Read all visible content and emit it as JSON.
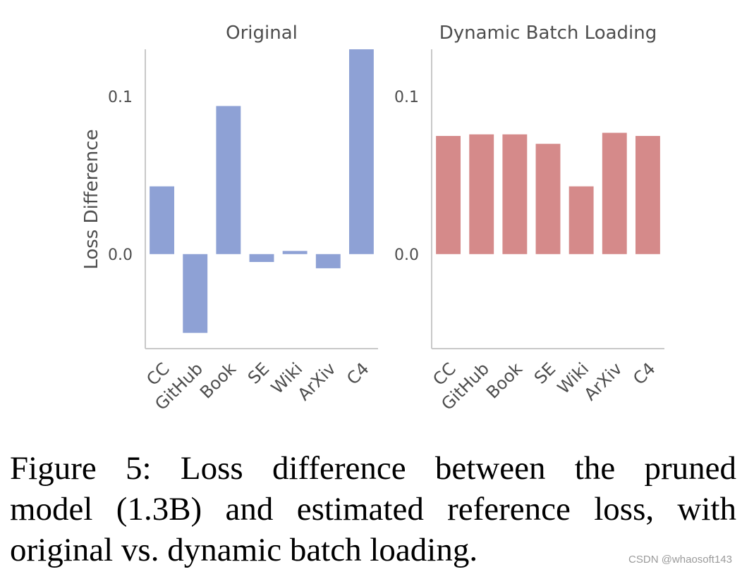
{
  "chart_data": [
    {
      "type": "bar",
      "title": "Original",
      "categories": [
        "CC",
        "GitHub",
        "Book",
        "SE",
        "Wiki",
        "ArXiv",
        "C4"
      ],
      "values": [
        0.043,
        -0.05,
        0.094,
        -0.005,
        0.002,
        -0.009,
        0.13
      ],
      "ylabel": "Loss Difference",
      "xlabel": "",
      "yticks": [
        "0.0",
        "0.1"
      ],
      "ylim": [
        -0.06,
        0.13
      ],
      "color": "#8ea1d5",
      "grid": false
    },
    {
      "type": "bar",
      "title": "Dynamic Batch Loading",
      "categories": [
        "CC",
        "GitHub",
        "Book",
        "SE",
        "Wiki",
        "ArXiv",
        "C4"
      ],
      "values": [
        0.075,
        0.076,
        0.076,
        0.07,
        0.043,
        0.077,
        0.075
      ],
      "ylabel": "",
      "xlabel": "",
      "yticks": [
        "0.0",
        "0.1"
      ],
      "ylim": [
        -0.06,
        0.13
      ],
      "color": "#d58a8a",
      "grid": false
    }
  ],
  "caption": {
    "lines": [
      "Figure 5: Loss difference between the pruned",
      "model (1.3B) and estimated reference loss, with",
      "original vs. dynamic batch loading."
    ]
  },
  "watermark": "CSDN @whaosoft143",
  "colors": {
    "axis": "#c8c8c8",
    "text": "#4d4d4d"
  }
}
